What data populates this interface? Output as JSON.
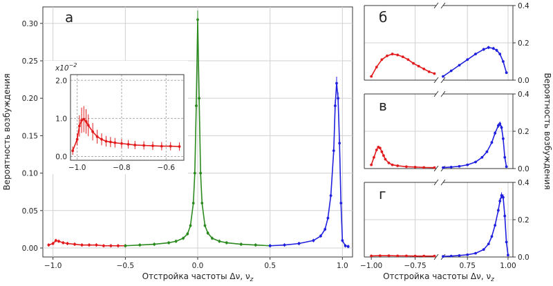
{
  "chart_data": [
    {
      "id": "a",
      "type": "line",
      "panel_label": "а",
      "xlabel": "Отстройка частоты Δν, ν",
      "xlabel_sub": "z",
      "ylabel": "Вероятность возбуждения",
      "xlim": [
        -1.07,
        1.07
      ],
      "ylim": [
        -0.012,
        0.322
      ],
      "xticks": [
        -1.0,
        -0.5,
        0.0,
        0.5,
        1.0
      ],
      "xtick_labels": [
        "−1.0",
        "−0.5",
        "0.0",
        "0.5",
        "1.0"
      ],
      "yticks": [
        0.0,
        0.05,
        0.1,
        0.15,
        0.2,
        0.25,
        0.3
      ],
      "ytick_labels": [
        "0.00",
        "0.05",
        "0.10",
        "0.15",
        "0.20",
        "0.25",
        "0.30"
      ],
      "grid": true,
      "series": [
        {
          "color": "#e31a1c",
          "x": [
            -1.03,
            -1.0,
            -0.98,
            -0.96,
            -0.93,
            -0.9,
            -0.85,
            -0.8,
            -0.75,
            -0.7,
            -0.65,
            -0.6,
            -0.55,
            -0.5
          ],
          "y": [
            0.004,
            0.006,
            0.01,
            0.009,
            0.007,
            0.006,
            0.005,
            0.004,
            0.004,
            0.004,
            0.003,
            0.003,
            0.003,
            0.003
          ]
        },
        {
          "color": "#2a8a1e",
          "x": [
            -0.5,
            -0.4,
            -0.3,
            -0.2,
            -0.15,
            -0.1,
            -0.07,
            -0.05,
            -0.03,
            -0.02,
            -0.01,
            0.0,
            0.01,
            0.02,
            0.03,
            0.05,
            0.07,
            0.1,
            0.15,
            0.2,
            0.3,
            0.4,
            0.5
          ],
          "y": [
            0.003,
            0.004,
            0.005,
            0.007,
            0.009,
            0.013,
            0.019,
            0.03,
            0.06,
            0.1,
            0.19,
            0.305,
            0.2,
            0.1,
            0.06,
            0.03,
            0.02,
            0.013,
            0.009,
            0.007,
            0.005,
            0.004,
            0.003
          ]
        },
        {
          "color": "#1f1fe0",
          "x": [
            0.5,
            0.6,
            0.7,
            0.8,
            0.85,
            0.88,
            0.9,
            0.92,
            0.94,
            0.95,
            0.96,
            0.97,
            0.98,
            0.99,
            1.0,
            1.02,
            1.04
          ],
          "y": [
            0.003,
            0.004,
            0.006,
            0.01,
            0.016,
            0.025,
            0.04,
            0.07,
            0.13,
            0.19,
            0.22,
            0.2,
            0.14,
            0.06,
            0.01,
            0.003,
            0.002
          ]
        }
      ],
      "inset": {
        "type": "line",
        "scale_label": "x10",
        "scale_exp": "−2",
        "xlim": [
          -1.03,
          -0.52
        ],
        "ylim": [
          -0.1,
          2.15
        ],
        "xticks": [
          -1.0,
          -0.8,
          -0.6
        ],
        "xtick_labels": [
          "−1.0",
          "−0.8",
          "−0.6"
        ],
        "yticks": [
          0.0,
          1.0,
          2.0
        ],
        "ytick_labels": [
          "0.0",
          "1.0",
          "2.0"
        ],
        "grid": "dashed",
        "series": [
          {
            "color": "#e31a1c",
            "x": [
              -1.02,
              -1.0,
              -0.99,
              -0.98,
              -0.97,
              -0.96,
              -0.95,
              -0.93,
              -0.91,
              -0.89,
              -0.87,
              -0.85,
              -0.83,
              -0.8,
              -0.77,
              -0.74,
              -0.7,
              -0.66,
              -0.62,
              -0.58,
              -0.54
            ],
            "y": [
              0.15,
              0.45,
              0.8,
              0.95,
              0.98,
              0.92,
              0.82,
              0.65,
              0.52,
              0.45,
              0.4,
              0.38,
              0.36,
              0.34,
              0.32,
              0.3,
              0.29,
              0.28,
              0.27,
              0.27,
              0.26
            ]
          }
        ]
      }
    },
    {
      "id": "b",
      "type": "line",
      "panel_label": "б",
      "ylim": [
        0,
        0.4
      ],
      "yticks": [
        0.0,
        0.2,
        0.4
      ],
      "ytick_labels": [
        "0.0",
        "0.2",
        "0.4"
      ],
      "left": {
        "color": "#e31a1c",
        "x": [
          -1.0,
          -0.97,
          -0.94,
          -0.91,
          -0.88,
          -0.85,
          -0.82,
          -0.79,
          -0.76,
          -0.73,
          -0.7,
          -0.67,
          -0.64
        ],
        "y": [
          0.02,
          0.07,
          0.11,
          0.13,
          0.14,
          0.135,
          0.125,
          0.11,
          0.09,
          0.075,
          0.06,
          0.045,
          0.035
        ]
      },
      "right": {
        "color": "#1f1fe0",
        "x": [
          0.6,
          0.65,
          0.7,
          0.75,
          0.8,
          0.85,
          0.88,
          0.91,
          0.93,
          0.95,
          0.97,
          0.99
        ],
        "y": [
          0.02,
          0.05,
          0.08,
          0.11,
          0.14,
          0.165,
          0.175,
          0.17,
          0.16,
          0.14,
          0.1,
          0.04
        ]
      }
    },
    {
      "id": "c",
      "type": "line",
      "panel_label": "в",
      "ylim": [
        0,
        0.4
      ],
      "yticks": [
        0.0,
        0.2,
        0.4
      ],
      "ytick_labels": [
        "0.0",
        "0.2",
        "0.4"
      ],
      "left": {
        "color": "#e31a1c",
        "x": [
          -1.0,
          -0.985,
          -0.97,
          -0.96,
          -0.95,
          -0.94,
          -0.93,
          -0.92,
          -0.9,
          -0.88,
          -0.85,
          -0.8,
          -0.75,
          -0.7,
          -0.64
        ],
        "y": [
          0.02,
          0.06,
          0.1,
          0.115,
          0.11,
          0.09,
          0.07,
          0.05,
          0.03,
          0.02,
          0.015,
          0.01,
          0.008,
          0.006,
          0.005
        ]
      },
      "right": {
        "color": "#1f1fe0",
        "x": [
          0.6,
          0.65,
          0.7,
          0.75,
          0.8,
          0.84,
          0.87,
          0.9,
          0.92,
          0.94,
          0.95,
          0.96,
          0.97,
          0.98,
          0.99
        ],
        "y": [
          0.005,
          0.008,
          0.012,
          0.02,
          0.035,
          0.06,
          0.09,
          0.14,
          0.19,
          0.23,
          0.24,
          0.22,
          0.16,
          0.06,
          0.01
        ]
      }
    },
    {
      "id": "d",
      "type": "line",
      "panel_label": "г",
      "ylim": [
        0,
        0.4
      ],
      "yticks": [
        0.0,
        0.2,
        0.4
      ],
      "ytick_labels": [
        "0.0",
        "0.2",
        "0.4"
      ],
      "xticks_left": [
        -1.0,
        -0.75
      ],
      "xtick_labels_left": [
        "−1.00",
        "−0.75"
      ],
      "xticks_right": [
        0.75,
        1.0
      ],
      "xtick_labels_right": [
        "0.75",
        "1.00"
      ],
      "xlabel": "Отстройка частоты Δν, ν",
      "xlabel_sub": "z",
      "left": {
        "color": "#e31a1c",
        "x": [
          -1.0,
          -0.95,
          -0.9,
          -0.85,
          -0.8,
          -0.75,
          -0.7,
          -0.64
        ],
        "y": [
          0.006,
          0.007,
          0.007,
          0.006,
          0.006,
          0.005,
          0.005,
          0.005
        ]
      },
      "right": {
        "color": "#1f1fe0",
        "x": [
          0.6,
          0.65,
          0.7,
          0.75,
          0.8,
          0.85,
          0.88,
          0.9,
          0.92,
          0.94,
          0.95,
          0.96,
          0.97,
          0.98,
          0.99,
          1.0
        ],
        "y": [
          0.003,
          0.005,
          0.008,
          0.012,
          0.02,
          0.04,
          0.07,
          0.11,
          0.17,
          0.25,
          0.3,
          0.33,
          0.32,
          0.22,
          0.08,
          0.01
        ]
      }
    }
  ]
}
